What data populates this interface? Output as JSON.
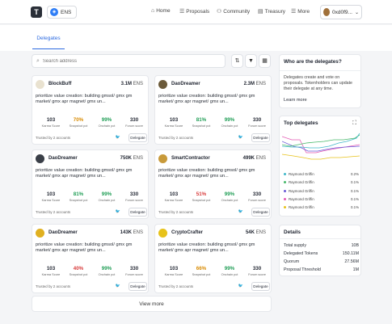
{
  "header": {
    "logo_text": "T",
    "ens_label": "ENS",
    "nav": [
      {
        "icon": "home-icon",
        "glyph": "⌂",
        "label": "Home"
      },
      {
        "icon": "proposals-icon",
        "glyph": "☰",
        "label": "Proposals"
      },
      {
        "icon": "community-icon",
        "glyph": "⚇",
        "label": "Community"
      },
      {
        "icon": "treasury-icon",
        "glyph": "▤",
        "label": "Treasury"
      },
      {
        "icon": "more-icon",
        "glyph": "☰",
        "label": "More"
      }
    ],
    "account": "0xd0f9..."
  },
  "tabs": {
    "delegates": "Delegates"
  },
  "search": {
    "placeholder": "Search address"
  },
  "cards": [
    {
      "name": "BlockBuff",
      "vp": "3.1M",
      "unit": "ENS",
      "avatar_color": "#e9e2d0",
      "desc": "prioritize value creation: building gmsol/ gmx gm market/ gmx apr magnet/ gmx un...",
      "karma": "103",
      "snapshot": "70%",
      "snapshot_color": "#d88a00",
      "onchain": "99%",
      "forum": "330",
      "trusted": "Trusted by 2 accounts",
      "delegate": "Delegate"
    },
    {
      "name": "DaoDreamer",
      "vp": "2.3M",
      "unit": "ENS",
      "avatar_color": "#6b5a3a",
      "desc": "prioritize value creation: building gmsol/ gmx gm market/ gmx apr magnet/ gmx un...",
      "karma": "103",
      "snapshot": "81%",
      "snapshot_color": "#1f9d55",
      "onchain": "99%",
      "forum": "330",
      "trusted": "Trusted by 2 accounts",
      "delegate": "Delegate"
    },
    {
      "name": "DaoDreamer",
      "vp": "750K",
      "unit": "ENS",
      "avatar_color": "#3a3f48",
      "desc": "prioritize value creation: building gmsol/ gmx gm market/ gmx apr magnet/ gmx un...",
      "karma": "103",
      "snapshot": "81%",
      "snapshot_color": "#1f9d55",
      "onchain": "99%",
      "forum": "330",
      "trusted": "Trusted by 2 accounts",
      "delegate": "Delegate"
    },
    {
      "name": "SmartContractor",
      "vp": "499K",
      "unit": "ENS",
      "avatar_color": "#c89a3a",
      "desc": "prioritize value creation: building gmsol/ gmx gm market/ gmx apr magnet/ gmx un...",
      "karma": "103",
      "snapshot": "51%",
      "snapshot_color": "#d83a3a",
      "onchain": "99%",
      "forum": "330",
      "trusted": "Trusted by 2 accounts",
      "delegate": "Delegate"
    },
    {
      "name": "DaoDreamer",
      "vp": "143K",
      "unit": "ENS",
      "avatar_color": "#e0b020",
      "desc": "prioritize value creation: building gmsol/ gmx gm market/ gmx apr magnet/ gmx un...",
      "karma": "103",
      "snapshot": "40%",
      "snapshot_color": "#d83a3a",
      "onchain": "99%",
      "forum": "330",
      "trusted": "Trusted by 2 accounts",
      "delegate": "Delegate"
    },
    {
      "name": "CryptoCrafter",
      "vp": "54K",
      "unit": "ENS",
      "avatar_color": "#e7c21a",
      "desc": "prioritize value creation: building gmsol/ gmx gm market/ gmx apr magnet/ gmx un...",
      "karma": "103",
      "snapshot": "66%",
      "snapshot_color": "#d88a00",
      "onchain": "99%",
      "forum": "330",
      "trusted": "Trusted by 2 accounts",
      "delegate": "Delegate"
    }
  ],
  "stat_labels": {
    "karma": "Karma Score",
    "snapshot": "Snapshot pct",
    "onchain": "Onchain pct",
    "forum": "Forum score"
  },
  "view_more": "View more",
  "who": {
    "title": "Who are the delegates?",
    "desc": "Delegates create and vote on proposals. Tokenholders can update their delegate at any time.",
    "link": "Learn more"
  },
  "top_delegates": {
    "title": "Top delegates",
    "legend": [
      {
        "name": "Raymond Griffin",
        "pct": "0.2%",
        "color": "#3fb7c9"
      },
      {
        "name": "Raymond Griffin",
        "pct": "0.1%",
        "color": "#46b86a"
      },
      {
        "name": "Raymond Griffin",
        "pct": "0.1%",
        "color": "#6a5cd6"
      },
      {
        "name": "Raymond Griffin",
        "pct": "0.1%",
        "color": "#e45ab4"
      },
      {
        "name": "Raymond Griffin",
        "pct": "0.1%",
        "color": "#e7c21a"
      }
    ]
  },
  "details": {
    "title": "Details",
    "rows": [
      {
        "label": "Total supply",
        "value": "10B"
      },
      {
        "label": "Delegated Tokens",
        "value": "150.11M"
      },
      {
        "label": "Quorum",
        "value": "27.56M"
      },
      {
        "label": "Proposal Threshold",
        "value": "1M"
      }
    ]
  }
}
